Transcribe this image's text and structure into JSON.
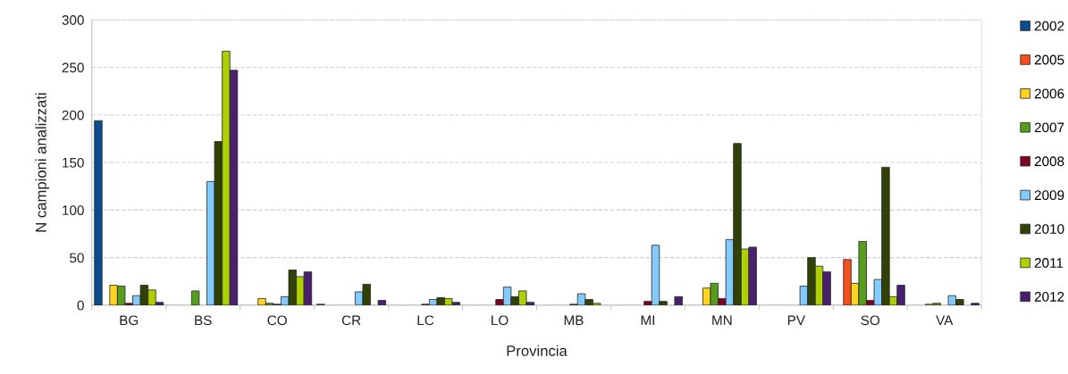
{
  "chart_data": {
    "type": "bar",
    "xlabel": "Provincia",
    "ylabel": "N campioni analizzati",
    "categories": [
      "BG",
      "BS",
      "CO",
      "CR",
      "LC",
      "LO",
      "MB",
      "MI",
      "MN",
      "PV",
      "SO",
      "VA"
    ],
    "series": [
      {
        "name": "2002",
        "color": "#0b4c8c",
        "values": [
          194,
          null,
          null,
          1,
          null,
          null,
          null,
          null,
          null,
          null,
          null,
          null
        ]
      },
      {
        "name": "2005",
        "color": "#f4511e",
        "values": [
          null,
          null,
          null,
          null,
          null,
          null,
          null,
          null,
          null,
          null,
          48,
          null
        ]
      },
      {
        "name": "2006",
        "color": "#ffd320",
        "values": [
          21,
          null,
          7,
          null,
          null,
          null,
          null,
          null,
          18,
          null,
          23,
          1
        ]
      },
      {
        "name": "2007",
        "color": "#579d1c",
        "values": [
          20,
          15,
          2,
          null,
          null,
          null,
          null,
          null,
          23,
          null,
          67,
          2
        ]
      },
      {
        "name": "2008",
        "color": "#7e0021",
        "values": [
          2,
          null,
          1,
          null,
          1,
          6,
          1,
          4,
          7,
          null,
          5,
          null
        ]
      },
      {
        "name": "2009",
        "color": "#83caff",
        "values": [
          10,
          130,
          9,
          14,
          6,
          19,
          12,
          63,
          69,
          20,
          27,
          10
        ]
      },
      {
        "name": "2010",
        "color": "#314004",
        "values": [
          21,
          172,
          37,
          22,
          8,
          9,
          6,
          4,
          170,
          50,
          145,
          6
        ]
      },
      {
        "name": "2011",
        "color": "#aecf00",
        "values": [
          16,
          267,
          30,
          null,
          7,
          15,
          2,
          null,
          59,
          41,
          9,
          null
        ]
      },
      {
        "name": "2012",
        "color": "#4b1f6f",
        "values": [
          3,
          247,
          35,
          5,
          3,
          3,
          null,
          9,
          61,
          35,
          21,
          2
        ]
      }
    ],
    "ylim": [
      0,
      300
    ],
    "yticks": [
      0,
      50,
      100,
      150,
      200,
      250,
      300
    ],
    "grid": "y",
    "legend": "right"
  }
}
